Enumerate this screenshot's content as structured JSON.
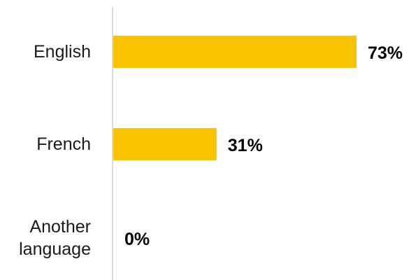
{
  "chart_data": {
    "type": "bar",
    "orientation": "horizontal",
    "title": "",
    "xlabel": "",
    "ylabel": "",
    "categories": [
      [
        "English"
      ],
      [
        "French"
      ],
      [
        "Another",
        "language"
      ]
    ],
    "values": [
      73,
      31,
      0
    ],
    "value_labels": [
      "73%",
      "31%",
      "0%"
    ],
    "xlim": [
      0,
      100
    ],
    "grid": false,
    "legend": "none",
    "bar_color": "#F9C300",
    "axis_color": "#d9d9d9"
  }
}
